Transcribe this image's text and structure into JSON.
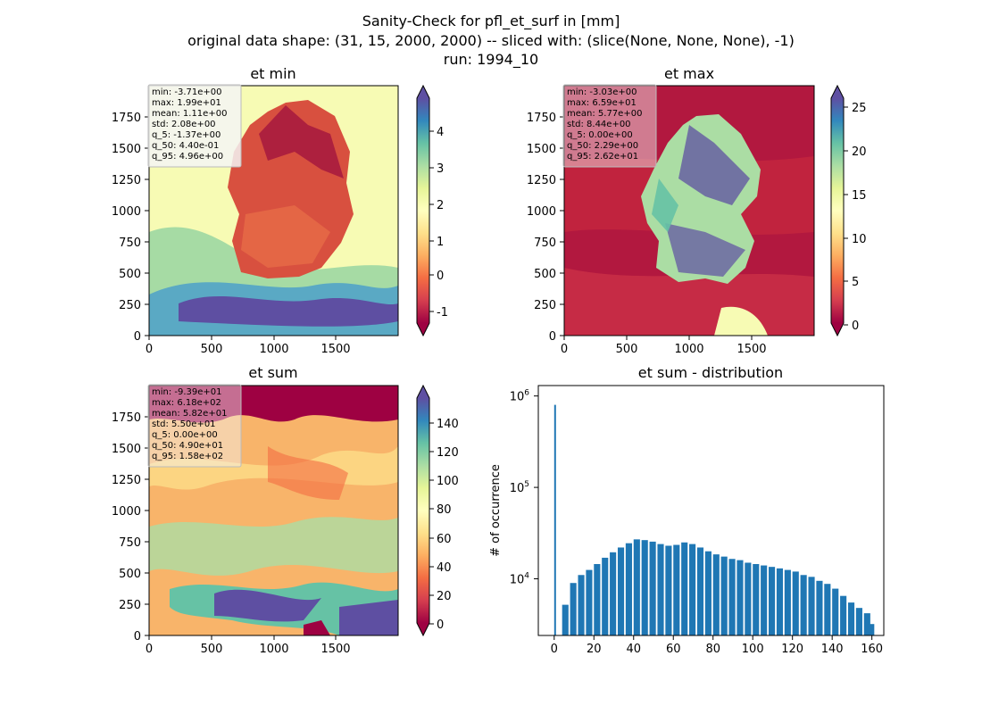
{
  "figure": {
    "title_lines": [
      "Sanity-Check for pfl_et_surf in [mm]",
      "original data shape: (31, 15, 2000, 2000) -- sliced with: (slice(None, None, None), -1)",
      "run: 1994_10"
    ]
  },
  "chart_data": [
    {
      "type": "heatmap",
      "title": "et min",
      "xlim": [
        0,
        2000
      ],
      "ylim": [
        0,
        2000
      ],
      "x_ticks": [
        0,
        500,
        1000,
        1500
      ],
      "y_ticks": [
        0,
        250,
        500,
        750,
        1000,
        1250,
        1500,
        1750
      ],
      "colormap": "Spectral",
      "colorbar": {
        "vmin": -1.6,
        "vmax": 5.3,
        "ticks": [
          -1,
          0,
          1,
          2,
          3,
          4
        ],
        "extend": "both"
      },
      "stats": [
        "min: -3.71e+00",
        "max: 1.99e+01",
        "mean: 1.11e+00",
        "std: 2.08e+00",
        "q_5: -1.37e+00",
        "q_50: 4.40e-01",
        "q_95: 4.96e+00"
      ]
    },
    {
      "type": "heatmap",
      "title": "et max",
      "xlim": [
        0,
        2000
      ],
      "ylim": [
        0,
        2000
      ],
      "x_ticks": [
        0,
        500,
        1000,
        1500
      ],
      "y_ticks": [
        0,
        250,
        500,
        750,
        1000,
        1250,
        1500,
        1750
      ],
      "colormap": "Spectral",
      "colorbar": {
        "vmin": 0,
        "vmax": 26.5,
        "ticks": [
          0,
          5,
          10,
          15,
          20,
          25
        ],
        "extend": "both"
      },
      "stats": [
        "min: -3.03e+00",
        "max: 6.59e+01",
        "mean: 5.77e+00",
        "std: 8.44e+00",
        "q_5: 0.00e+00",
        "q_50: 2.29e+00",
        "q_95: 2.62e+01"
      ]
    },
    {
      "type": "heatmap",
      "title": "et sum",
      "xlim": [
        0,
        2000
      ],
      "ylim": [
        0,
        2000
      ],
      "x_ticks": [
        0,
        500,
        1000,
        1500
      ],
      "y_ticks": [
        0,
        250,
        500,
        750,
        1000,
        1250,
        1500,
        1750
      ],
      "colormap": "Spectral",
      "colorbar": {
        "vmin": -1,
        "vmax": 160,
        "ticks": [
          0,
          20,
          40,
          60,
          80,
          100,
          120,
          140
        ],
        "extend": "both"
      },
      "stats": [
        "min: -9.39e+01",
        "max: 6.18e+02",
        "mean: 5.82e+01",
        "std: 5.50e+01",
        "q_5: 0.00e+00",
        "q_50: 4.90e+01",
        "q_95: 1.58e+02"
      ]
    },
    {
      "type": "bar",
      "title": "et sum - distribution",
      "ylabel": "# of occurrence",
      "xlim": [
        -8,
        166
      ],
      "ylim_log": [
        2400,
        1300000
      ],
      "x_ticks": [
        0,
        20,
        40,
        60,
        80,
        100,
        120,
        140,
        160
      ],
      "y_ticks": [
        {
          "value": 10000,
          "base": "10",
          "exp": "4"
        },
        {
          "value": 100000,
          "base": "10",
          "exp": "5"
        },
        {
          "value": 1000000,
          "base": "10",
          "exp": "6"
        }
      ],
      "bar_color": "#1f77b4",
      "bin_width": 0.8,
      "bins": [
        [
          0,
          800000
        ],
        [
          4,
          5200
        ],
        [
          8,
          9000
        ],
        [
          12,
          11000
        ],
        [
          16,
          12500
        ],
        [
          20,
          14500
        ],
        [
          24,
          17000
        ],
        [
          28,
          19500
        ],
        [
          32,
          22000
        ],
        [
          36,
          24500
        ],
        [
          40,
          27000
        ],
        [
          44,
          26500
        ],
        [
          48,
          25500
        ],
        [
          52,
          24000
        ],
        [
          56,
          23000
        ],
        [
          60,
          23500
        ],
        [
          64,
          25000
        ],
        [
          68,
          24000
        ],
        [
          72,
          22000
        ],
        [
          76,
          20000
        ],
        [
          80,
          18500
        ],
        [
          84,
          17500
        ],
        [
          88,
          16500
        ],
        [
          92,
          16000
        ],
        [
          96,
          15000
        ],
        [
          100,
          14500
        ],
        [
          104,
          14000
        ],
        [
          108,
          13500
        ],
        [
          112,
          13000
        ],
        [
          116,
          12500
        ],
        [
          120,
          12000
        ],
        [
          124,
          11000
        ],
        [
          128,
          10500
        ],
        [
          132,
          9500
        ],
        [
          136,
          8800
        ],
        [
          140,
          7800
        ],
        [
          144,
          6500
        ],
        [
          148,
          5500
        ],
        [
          152,
          4800
        ],
        [
          156,
          4200
        ],
        [
          158,
          3200
        ]
      ]
    }
  ]
}
